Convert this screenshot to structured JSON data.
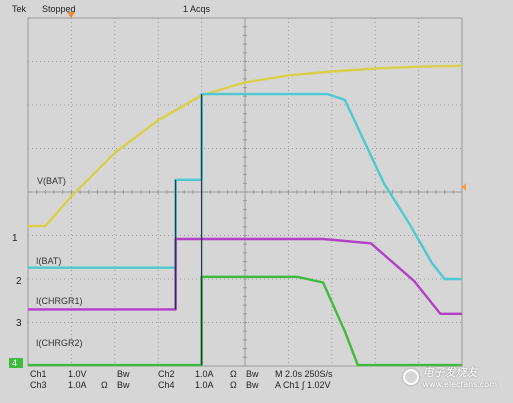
{
  "header": {
    "brand": "Tek",
    "state": "Stopped",
    "acquisitions": "1 Acqs"
  },
  "channel_markers": [
    "1",
    "2",
    "3",
    "4"
  ],
  "trace_labels": {
    "vbat": "V(BAT)",
    "ibat": "I(BAT)",
    "ichrgr1": "I(CHRGR1)",
    "ichrgr2": "I(CHRGR2)"
  },
  "readout": {
    "ch1": "Ch1",
    "ch1_scale": "1.0V",
    "ch1_bw": "Bw",
    "ch2": "Ch2",
    "ch2_scale": "1.0A",
    "ch2_ohm": "Ω",
    "ch2_bw": "Bw",
    "ch3": "Ch3",
    "ch3_scale": "1.0A",
    "ch3_ohm": "Ω",
    "ch3_bw": "Bw",
    "ch4": "Ch4",
    "ch4_scale": "1.0A",
    "ch4_ohm": "Ω",
    "ch4_bw": "Bw",
    "timebase": "M 2.0s 250S/s",
    "trigger": "A Ch1 ∫ 1.02V"
  },
  "watermark": {
    "text": "电子发烧友",
    "site": "www.elecfans.com"
  },
  "colors": {
    "ch1": "#d9cf4a",
    "ch2": "#4ec9d2",
    "ch3": "#b43fc8",
    "ch4": "#3fba3f",
    "step": "#1d3b4a",
    "grid": "#9a9a9a",
    "screen": "#d6d6d6"
  },
  "chart_data": [
    {
      "type": "line",
      "title": "",
      "xlabel": "",
      "ylabel": "",
      "x_range_div": [
        0,
        10
      ],
      "y_range_div": [
        0,
        8
      ],
      "grid": true,
      "series": [
        {
          "name": "V(BAT)",
          "x": [
            0,
            0.4,
            1.0,
            2.0,
            3.0,
            4.0,
            5.0,
            6.0,
            7.0,
            8.0,
            9.0,
            10.0
          ],
          "y": [
            3.22,
            3.22,
            3.9,
            4.9,
            5.65,
            6.22,
            6.52,
            6.68,
            6.77,
            6.84,
            6.88,
            6.9
          ]
        },
        {
          "name": "I(BAT)",
          "x": [
            0,
            3.4,
            3.4,
            4.0,
            4.0,
            6.9,
            7.3,
            8.2,
            8.8,
            9.3,
            9.6,
            10.0
          ],
          "y": [
            2.26,
            2.26,
            4.28,
            4.28,
            6.25,
            6.25,
            6.12,
            4.2,
            3.25,
            2.38,
            2.0,
            2.0
          ]
        },
        {
          "name": "I(CHRGR1)",
          "x": [
            0,
            3.4,
            3.4,
            6.8,
            7.9,
            8.9,
            9.5,
            10.0
          ],
          "y": [
            1.3,
            1.3,
            2.92,
            2.92,
            2.82,
            1.95,
            1.2,
            1.2
          ]
        },
        {
          "name": "I(CHRGR2)",
          "x": [
            0,
            4.0,
            4.0,
            6.2,
            6.8,
            7.3,
            7.6,
            10.0
          ],
          "y": [
            0.02,
            0.02,
            2.05,
            2.05,
            1.92,
            0.8,
            0.02,
            0.02
          ]
        }
      ]
    }
  ]
}
